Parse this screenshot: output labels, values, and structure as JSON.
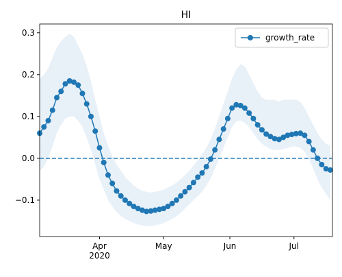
{
  "chart_data": {
    "type": "line",
    "title": "HI",
    "x": [
      "2020-03-04",
      "2020-03-06",
      "2020-03-08",
      "2020-03-10",
      "2020-03-12",
      "2020-03-14",
      "2020-03-16",
      "2020-03-18",
      "2020-03-20",
      "2020-03-22",
      "2020-03-24",
      "2020-03-26",
      "2020-03-28",
      "2020-03-30",
      "2020-04-01",
      "2020-04-03",
      "2020-04-05",
      "2020-04-07",
      "2020-04-09",
      "2020-04-11",
      "2020-04-13",
      "2020-04-15",
      "2020-04-17",
      "2020-04-19",
      "2020-04-21",
      "2020-04-23",
      "2020-04-25",
      "2020-04-27",
      "2020-04-29",
      "2020-05-01",
      "2020-05-03",
      "2020-05-05",
      "2020-05-07",
      "2020-05-09",
      "2020-05-11",
      "2020-05-13",
      "2020-05-15",
      "2020-05-17",
      "2020-05-19",
      "2020-05-21",
      "2020-05-23",
      "2020-05-25",
      "2020-05-27",
      "2020-05-29",
      "2020-05-31",
      "2020-06-02",
      "2020-06-04",
      "2020-06-06",
      "2020-06-08",
      "2020-06-10",
      "2020-06-12",
      "2020-06-14",
      "2020-06-16",
      "2020-06-18",
      "2020-06-20",
      "2020-06-22",
      "2020-06-24",
      "2020-06-26",
      "2020-06-28",
      "2020-06-30",
      "2020-07-02",
      "2020-07-04",
      "2020-07-06",
      "2020-07-08",
      "2020-07-10",
      "2020-07-12",
      "2020-07-14",
      "2020-07-16",
      "2020-07-18"
    ],
    "series": [
      {
        "name": "growth_rate",
        "color": "#1f77b4",
        "band_color": "#e8f0f8",
        "values": [
          0.06,
          0.075,
          0.09,
          0.115,
          0.145,
          0.16,
          0.178,
          0.185,
          0.182,
          0.175,
          0.155,
          0.13,
          0.1,
          0.065,
          0.025,
          -0.01,
          -0.04,
          -0.06,
          -0.078,
          -0.09,
          -0.1,
          -0.108,
          -0.115,
          -0.12,
          -0.124,
          -0.127,
          -0.126,
          -0.124,
          -0.122,
          -0.12,
          -0.115,
          -0.108,
          -0.1,
          -0.09,
          -0.08,
          -0.07,
          -0.058,
          -0.045,
          -0.035,
          -0.02,
          -0.002,
          0.02,
          0.045,
          0.07,
          0.095,
          0.12,
          0.128,
          0.126,
          0.12,
          0.108,
          0.095,
          0.08,
          0.068,
          0.058,
          0.052,
          0.047,
          0.045,
          0.05,
          0.055,
          0.057,
          0.059,
          0.06,
          0.055,
          0.04,
          0.02,
          0.0,
          -0.015,
          -0.025,
          -0.028
        ],
        "lower": [
          -0.03,
          -0.02,
          0.0,
          0.03,
          0.06,
          0.08,
          0.095,
          0.1,
          0.1,
          0.09,
          0.075,
          0.05,
          0.02,
          -0.015,
          -0.05,
          -0.075,
          -0.1,
          -0.115,
          -0.128,
          -0.138,
          -0.145,
          -0.15,
          -0.155,
          -0.158,
          -0.16,
          -0.162,
          -0.162,
          -0.16,
          -0.158,
          -0.155,
          -0.15,
          -0.145,
          -0.138,
          -0.13,
          -0.12,
          -0.11,
          -0.1,
          -0.09,
          -0.08,
          -0.065,
          -0.048,
          -0.025,
          0.0,
          0.025,
          0.05,
          0.075,
          0.088,
          0.09,
          0.085,
          0.075,
          0.06,
          0.045,
          0.035,
          0.028,
          0.022,
          0.02,
          0.02,
          0.022,
          0.025,
          0.028,
          0.028,
          0.025,
          0.015,
          0.0,
          -0.025,
          -0.05,
          -0.07,
          -0.085,
          -0.1
        ],
        "upper": [
          0.19,
          0.2,
          0.215,
          0.24,
          0.265,
          0.28,
          0.29,
          0.298,
          0.29,
          0.27,
          0.25,
          0.22,
          0.185,
          0.14,
          0.1,
          0.06,
          0.03,
          0.005,
          -0.015,
          -0.03,
          -0.045,
          -0.055,
          -0.065,
          -0.072,
          -0.078,
          -0.08,
          -0.082,
          -0.08,
          -0.078,
          -0.075,
          -0.07,
          -0.065,
          -0.058,
          -0.05,
          -0.04,
          -0.03,
          -0.018,
          -0.005,
          0.01,
          0.025,
          0.045,
          0.07,
          0.1,
          0.13,
          0.16,
          0.19,
          0.212,
          0.225,
          0.22,
          0.2,
          0.18,
          0.16,
          0.145,
          0.14,
          0.14,
          0.14,
          0.135,
          0.14,
          0.14,
          0.14,
          0.14,
          0.135,
          0.12,
          0.1,
          0.08,
          0.06,
          0.045,
          0.035,
          0.03
        ]
      }
    ],
    "xlim": [
      "2020-03-04",
      "2020-07-19"
    ],
    "xticks": [
      {
        "value": "2020-04-01",
        "label": "Apr\n2020"
      },
      {
        "value": "2020-05-01",
        "label": "May"
      },
      {
        "value": "2020-06-01",
        "label": "Jun"
      },
      {
        "value": "2020-07-01",
        "label": "Jul"
      }
    ],
    "ylim": [
      -0.187,
      0.321
    ],
    "yticks": [
      {
        "value": -0.1,
        "label": "−0.1"
      },
      {
        "value": 0,
        "label": "0.0"
      },
      {
        "value": 0.1,
        "label": "0.1"
      },
      {
        "value": 0.2,
        "label": "0.2"
      },
      {
        "value": 0.3,
        "label": "0.3"
      }
    ],
    "hline": 0,
    "legend": "upper right"
  }
}
